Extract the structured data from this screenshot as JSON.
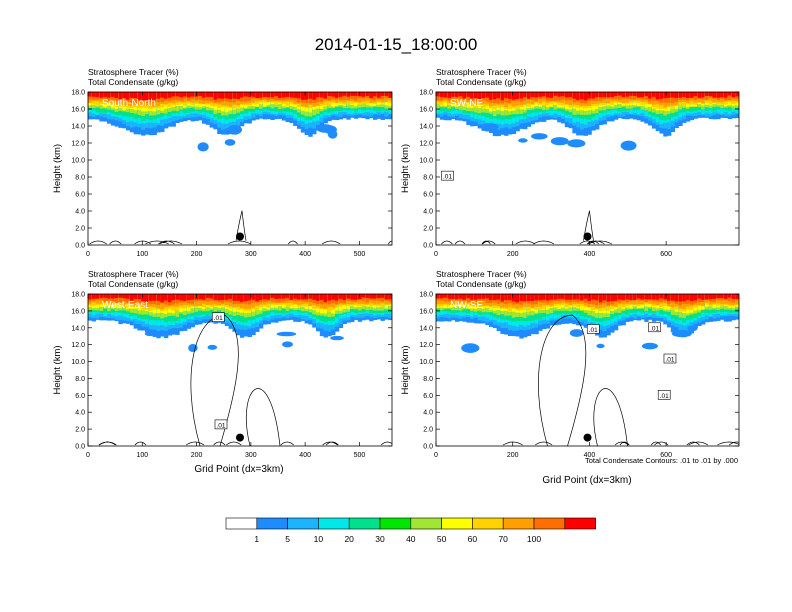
{
  "figure": {
    "title": "2014-01-15_18:00:00",
    "contour_note": "Total Condensate Contours: .01 to .01 by .000",
    "xlabel": "Grid Point (dx=3km)",
    "colorbar": {
      "labels": [
        "1",
        "5",
        "10",
        "20",
        "30",
        "40",
        "50",
        "60",
        "70",
        "100"
      ],
      "colors": [
        "#ffffff",
        "#1e8cff",
        "#1cb4ff",
        "#00e8e8",
        "#00e18c",
        "#00e600",
        "#a0e632",
        "#ffff00",
        "#ffd200",
        "#ffa000",
        "#ff6e00",
        "#ff0000"
      ]
    }
  },
  "chart_data": [
    {
      "type": "heatmap",
      "panel_label": "South-North",
      "titles": [
        "Stratosphere Tracer   (%)",
        "Total Condensate   (g/kg)"
      ],
      "ylabel": "Height (km)",
      "xlabel": "",
      "xlim": [
        0,
        560
      ],
      "ylim": [
        0,
        18
      ],
      "xticks": [
        0,
        100,
        200,
        300,
        400,
        500
      ],
      "yticks": [
        "0.0",
        "2.0",
        "4.0",
        "6.0",
        "8.0",
        "10.0",
        "12.0",
        "14.0",
        "16.0",
        "18.0"
      ],
      "marker": {
        "x": 280,
        "y": 1.0
      },
      "contour_labels": []
    },
    {
      "type": "heatmap",
      "panel_label": "SW-NE",
      "titles": [
        "Stratosphere Tracer   (%)",
        "Total Condensate   (g/kg)"
      ],
      "ylabel": "Height (km)",
      "xlabel": "",
      "xlim": [
        0,
        790
      ],
      "ylim": [
        0,
        18
      ],
      "xticks": [
        0,
        200,
        400,
        600
      ],
      "yticks": [
        "0.0",
        "2.0",
        "4.0",
        "6.0",
        "8.0",
        "10.0",
        "12.0",
        "14.0",
        "16.0",
        "18.0"
      ],
      "marker": {
        "x": 395,
        "y": 1.0
      },
      "contour_labels": [
        {
          "text": ".01",
          "x": 30,
          "y": 8.1
        }
      ]
    },
    {
      "type": "heatmap",
      "panel_label": "West-East",
      "titles": [
        "Stratosphere Tracer   (%)",
        "Total Condensate   (g/kg)"
      ],
      "ylabel": "Height (km)",
      "xlabel": "Grid Point (dx=3km)",
      "xlim": [
        0,
        560
      ],
      "ylim": [
        0,
        18
      ],
      "xticks": [
        0,
        100,
        200,
        300,
        400,
        500
      ],
      "yticks": [
        "0.0",
        "2.0",
        "4.0",
        "6.0",
        "8.0",
        "10.0",
        "12.0",
        "14.0",
        "16.0",
        "18.0"
      ],
      "marker": {
        "x": 280,
        "y": 1.0
      },
      "contour_labels": [
        {
          "text": ".01",
          "x": 240,
          "y": 15.2
        },
        {
          "text": ".01",
          "x": 245,
          "y": 2.5
        }
      ]
    },
    {
      "type": "heatmap",
      "panel_label": "NW-SE",
      "titles": [
        "Stratosphere Tracer   (%)",
        "Total Condensate   (g/kg)"
      ],
      "ylabel": "Height (km)",
      "xlabel": "Grid Point (dx=3km)",
      "xlim": [
        0,
        790
      ],
      "ylim": [
        0,
        18
      ],
      "xticks": [
        0,
        200,
        400,
        600
      ],
      "yticks": [
        "0.0",
        "2.0",
        "4.0",
        "6.0",
        "8.0",
        "10.0",
        "12.0",
        "14.0",
        "16.0",
        "18.0"
      ],
      "marker": {
        "x": 395,
        "y": 1.0
      },
      "contour_labels": [
        {
          "text": ".01",
          "x": 410,
          "y": 13.8
        },
        {
          "text": ".01",
          "x": 570,
          "y": 14.0
        },
        {
          "text": ".01",
          "x": 610,
          "y": 10.3
        },
        {
          "text": ".01",
          "x": 595,
          "y": 6.0
        }
      ]
    }
  ]
}
